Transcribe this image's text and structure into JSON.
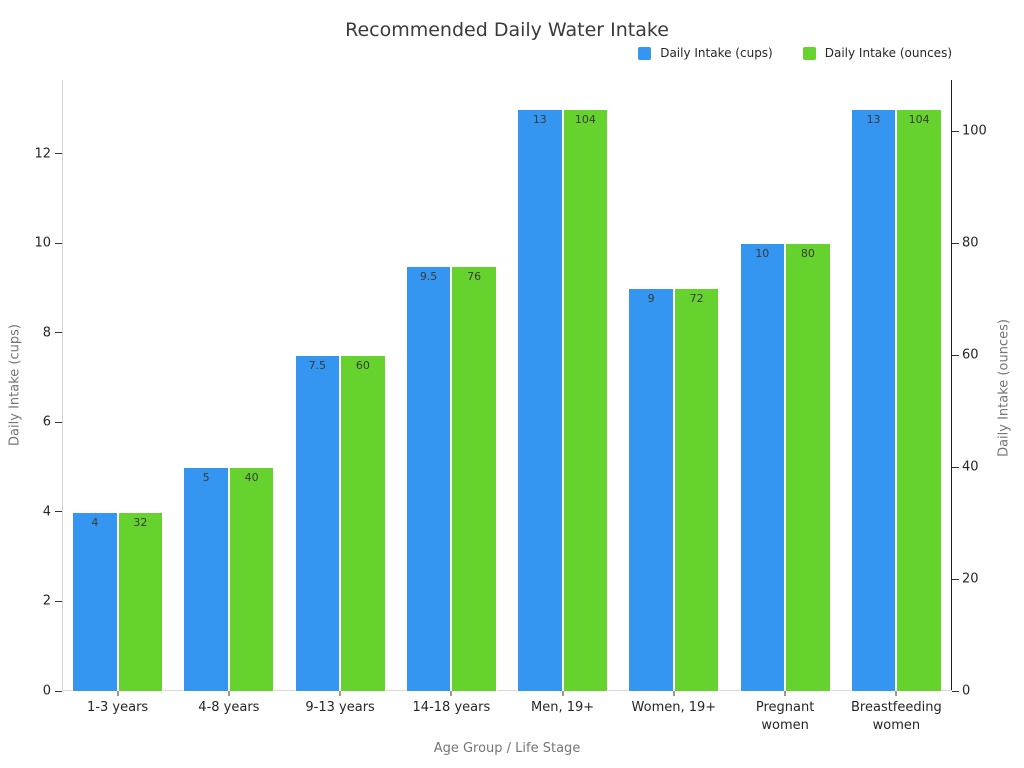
{
  "title": "Recommended Daily Water Intake",
  "colors": {
    "cups_bar": "#3496F0",
    "ounces_bar": "#66D22E",
    "tick": "#333333",
    "tick_label": "#262626",
    "axis_title": "#757575"
  },
  "chart_data": {
    "type": "bar",
    "title": "Recommended Daily Water Intake",
    "categories": [
      "1-3 years",
      "4-8 years",
      "9-13 years",
      "14-18 years",
      "Men, 19+",
      "Women, 19+",
      "Pregnant women",
      "Breastfeeding women"
    ],
    "series": [
      {
        "name": "Daily Intake (cups)",
        "axis": "left",
        "color": "#3496F0",
        "values": [
          4,
          5,
          7.5,
          9.5,
          13,
          9,
          10,
          13
        ]
      },
      {
        "name": "Daily Intake (ounces)",
        "axis": "right",
        "color": "#66D22E",
        "values": [
          32,
          40,
          60,
          76,
          104,
          72,
          80,
          104
        ]
      }
    ],
    "bar_labels": true,
    "xlabel": "Age Group / Life Stage",
    "ylabel": "Daily Intake (cups)",
    "y2label": "Daily Intake (ounces)",
    "ylim": [
      0,
      13.65
    ],
    "y2lim": [
      0,
      109.2
    ],
    "yticks": [
      0,
      2,
      4,
      6,
      8,
      10,
      12
    ],
    "y2ticks": [
      0,
      20,
      40,
      60,
      80,
      100
    ],
    "grid": false,
    "legend_position": "top-right",
    "background": "#ffffff"
  }
}
